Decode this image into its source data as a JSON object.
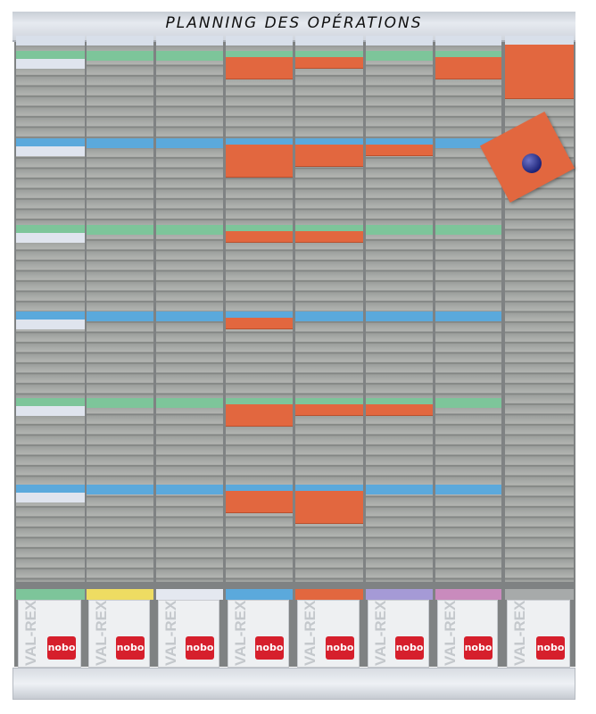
{
  "header": {
    "title": "PLANNING DES OPÉRATIONS"
  },
  "colors": {
    "orange_card": "#e2673f",
    "green_bar": "#7dc59a",
    "blue_bar": "#5ba9dc",
    "white_card": "#dfe4ee"
  },
  "section_bar_colors": [
    "#7dc59a",
    "#5ba9dc",
    "#7dc59a",
    "#5ba9dc",
    "#7dc59a",
    "#5ba9dc"
  ],
  "columns": [
    {
      "white_cards": [
        0,
        1,
        2,
        3,
        4,
        5
      ],
      "orange_cards": []
    },
    {
      "white_cards": [],
      "orange_cards": []
    },
    {
      "white_cards": [],
      "orange_cards": []
    },
    {
      "white_cards": [],
      "orange_cards": [
        {
          "section": 0,
          "slots": 2
        },
        {
          "section": 1,
          "slots": 3
        },
        {
          "section": 2,
          "slots": 1
        },
        {
          "section": 3,
          "slots": 1
        },
        {
          "section": 4,
          "slots": 2
        },
        {
          "section": 5,
          "slots": 2
        }
      ]
    },
    {
      "white_cards": [],
      "orange_cards": [
        {
          "section": 0,
          "slots": 1
        },
        {
          "section": 1,
          "slots": 2
        },
        {
          "section": 2,
          "slots": 1
        },
        {
          "section": 4,
          "slots": 1
        },
        {
          "section": 5,
          "slots": 3
        }
      ]
    },
    {
      "white_cards": [],
      "orange_cards": [
        {
          "section": 1,
          "slots": 1
        },
        {
          "section": 4,
          "slots": 1
        }
      ]
    },
    {
      "white_cards": [],
      "orange_cards": [
        {
          "section": 0,
          "slots": 2
        }
      ]
    },
    {
      "white_cards": [],
      "orange_cards": [],
      "stock_column": true
    }
  ],
  "pockets": [
    {
      "tab_color": "#7dc59a",
      "brand": "VAL-REX",
      "logo": "nobo"
    },
    {
      "tab_color": "#eedc62",
      "brand": "VAL-REX",
      "logo": "nobo"
    },
    {
      "tab_color": "#e4e8f0",
      "brand": "VAL-REX",
      "logo": "nobo"
    },
    {
      "tab_color": "#5ba9dc",
      "brand": "VAL-REX",
      "logo": "nobo"
    },
    {
      "tab_color": "#e2673f",
      "brand": "VAL-REX",
      "logo": "nobo"
    },
    {
      "tab_color": "#a59ad6",
      "brand": "VAL-REX",
      "logo": "nobo"
    },
    {
      "tab_color": "#c98bbd",
      "brand": "VAL-REX",
      "logo": "nobo"
    },
    {
      "tab_color": "#a7aaaa",
      "brand": "VAL-REX",
      "logo": "nobo"
    }
  ]
}
